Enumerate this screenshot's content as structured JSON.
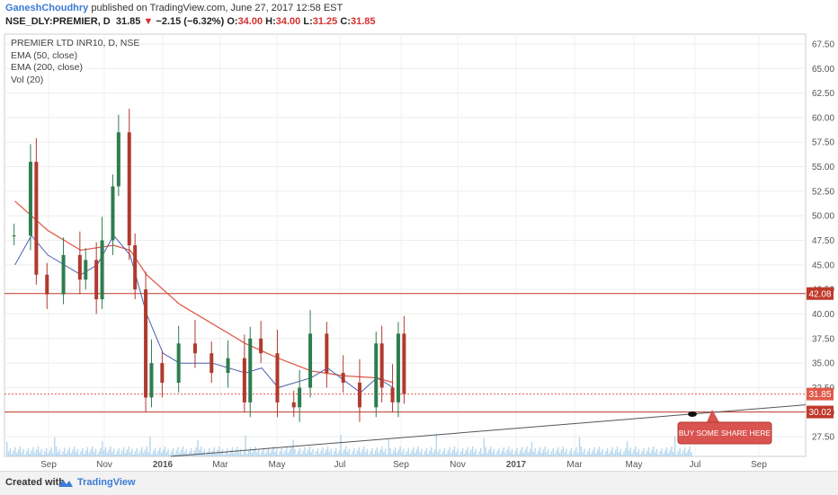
{
  "header": {
    "author": "GaneshChoudhry",
    "published": " published on TradingView.com, June 27, 2017 12:58 EST",
    "symbol": "NSE_DLY:PREMIER, D",
    "last": "31.85",
    "change_arrow": "▼",
    "change": "−2.15 (−6.32%)",
    "o_label": "O:",
    "o_value": "34.00",
    "h_label": "H:",
    "h_value": "34.00",
    "l_label": "L:",
    "l_value": "31.25",
    "c_label": "C:",
    "c_value": "31.85"
  },
  "legend": {
    "title": "PREMIER LTD INR10, D, NSE",
    "ema50": "EMA (50, close)",
    "ema200": "EMA (200, close)",
    "vol": "Vol (20)"
  },
  "footer": {
    "made_with": "Created with",
    "brand": "TradingView"
  },
  "chart_data": {
    "type": "candlestick",
    "y_axis_ticks": [
      "27.50",
      "30.00",
      "32.50",
      "35.00",
      "37.50",
      "40.00",
      "42.50",
      "45.00",
      "47.50",
      "50.00",
      "52.50",
      "55.00",
      "57.50",
      "60.00",
      "62.50",
      "65.00",
      "67.50"
    ],
    "ylim": [
      25.5,
      68.5
    ],
    "x_axis_ticks": [
      "Sep",
      "Nov",
      "2016",
      "Mar",
      "May",
      "Jul",
      "Sep",
      "Nov",
      "2017",
      "Mar",
      "May",
      "Jul",
      "Sep"
    ],
    "price_labels": [
      {
        "value": 42.08,
        "text": "42.08",
        "color": "#c0392b"
      },
      {
        "value": 31.85,
        "text": "31.85",
        "color": "#e05a4a"
      },
      {
        "value": 30.02,
        "text": "30.02",
        "color": "#c0392b"
      }
    ],
    "horizontal_lines": [
      {
        "value": 42.08,
        "style": "solid",
        "color": "#c0392b"
      },
      {
        "value": 31.85,
        "style": "dotted",
        "color": "#e05a4a"
      },
      {
        "value": 30.02,
        "style": "solid",
        "color": "#c0392b"
      }
    ],
    "trendline": {
      "from": {
        "x": "Jan 2016",
        "y": 25.5
      },
      "to": {
        "x": "Oct 2017",
        "y": 30.75
      },
      "color": "#555555"
    },
    "annotation": {
      "text": "BUY SOME SHARE HERE",
      "color": "#d9534f"
    },
    "close_series": [
      {
        "x": "Jul 2015",
        "y": 48.0
      },
      {
        "x": "Aug 2015",
        "y": 55.5
      },
      {
        "x": "Aug 2015",
        "y": 44.0
      },
      {
        "x": "Sep 2015",
        "y": 42.0
      },
      {
        "x": "Oct 2015",
        "y": 46.0
      },
      {
        "x": "Nov 2015",
        "y": 43.5
      },
      {
        "x": "Nov 2015",
        "y": 45.5
      },
      {
        "x": "Dec 2015",
        "y": 41.5
      },
      {
        "x": "Dec 2015",
        "y": 47.5
      },
      {
        "x": "Jan 2016",
        "y": 53.0
      },
      {
        "x": "Jan 2016",
        "y": 58.5
      },
      {
        "x": "Feb 2016",
        "y": 47.0
      },
      {
        "x": "Feb 2016",
        "y": 42.5
      },
      {
        "x": "Mar 2016",
        "y": 31.5
      },
      {
        "x": "Mar 2016",
        "y": 35.0
      },
      {
        "x": "Apr 2016",
        "y": 33.0
      },
      {
        "x": "May 2016",
        "y": 37.0
      },
      {
        "x": "Jun 2016",
        "y": 36.0
      },
      {
        "x": "Jul 2016",
        "y": 34.0
      },
      {
        "x": "Aug 2016",
        "y": 35.5
      },
      {
        "x": "Sep 2016",
        "y": 31.0
      },
      {
        "x": "Sep 2016",
        "y": 37.5
      },
      {
        "x": "Oct 2016",
        "y": 36.0
      },
      {
        "x": "Nov 2016",
        "y": 31.0
      },
      {
        "x": "Dec 2016",
        "y": 30.5
      },
      {
        "x": "Dec 2016",
        "y": 32.5
      },
      {
        "x": "Jan 2017",
        "y": 38.0
      },
      {
        "x": "Feb 2017",
        "y": 34.0
      },
      {
        "x": "Mar 2017",
        "y": 33.0
      },
      {
        "x": "Apr 2017",
        "y": 30.5
      },
      {
        "x": "May 2017",
        "y": 37.0
      },
      {
        "x": "May 2017",
        "y": 32.5
      },
      {
        "x": "Jun 2017",
        "y": 31.0
      },
      {
        "x": "Jun 2017",
        "y": 38.0
      },
      {
        "x": "Jun 2017",
        "y": 31.85
      }
    ],
    "ema200": [
      {
        "x": "Jul 2015",
        "y": 51.5
      },
      {
        "x": "Sep 2015",
        "y": 48.5
      },
      {
        "x": "Nov 2015",
        "y": 46.5
      },
      {
        "x": "Jan 2016",
        "y": 47.0
      },
      {
        "x": "Feb 2016",
        "y": 46.5
      },
      {
        "x": "Mar 2016",
        "y": 44.0
      },
      {
        "x": "May 2016",
        "y": 41.0
      },
      {
        "x": "Jul 2016",
        "y": 39.0
      },
      {
        "x": "Sep 2016",
        "y": 37.0
      },
      {
        "x": "Nov 2016",
        "y": 35.5
      },
      {
        "x": "Jan 2017",
        "y": 34.2
      },
      {
        "x": "Mar 2017",
        "y": 33.7
      },
      {
        "x": "May 2017",
        "y": 33.5
      },
      {
        "x": "Jun 2017",
        "y": 33.0
      }
    ],
    "ema50": [
      {
        "x": "Jul 2015",
        "y": 45.0
      },
      {
        "x": "Aug 2015",
        "y": 48.0
      },
      {
        "x": "Sep 2015",
        "y": 46.0
      },
      {
        "x": "Nov 2015",
        "y": 44.0
      },
      {
        "x": "Dec 2015",
        "y": 45.0
      },
      {
        "x": "Jan 2016",
        "y": 48.0
      },
      {
        "x": "Feb 2016",
        "y": 46.0
      },
      {
        "x": "Mar 2016",
        "y": 40.0
      },
      {
        "x": "Apr 2016",
        "y": 36.0
      },
      {
        "x": "May 2016",
        "y": 35.0
      },
      {
        "x": "Jul 2016",
        "y": 35.0
      },
      {
        "x": "Sep 2016",
        "y": 34.0
      },
      {
        "x": "Oct 2016",
        "y": 34.5
      },
      {
        "x": "Nov 2016",
        "y": 32.5
      },
      {
        "x": "Jan 2017",
        "y": 33.5
      },
      {
        "x": "Feb 2017",
        "y": 34.5
      },
      {
        "x": "Apr 2017",
        "y": 32.0
      },
      {
        "x": "May 2017",
        "y": 33.5
      },
      {
        "x": "Jun 2017",
        "y": 32.5
      }
    ],
    "grid": true,
    "up_color": "#2e7d4f",
    "down_color": "#b03a2e",
    "ema50_color": "#4a5fb0",
    "ema200_color": "#e05a4a",
    "volume_color": "#9ec9e8"
  }
}
